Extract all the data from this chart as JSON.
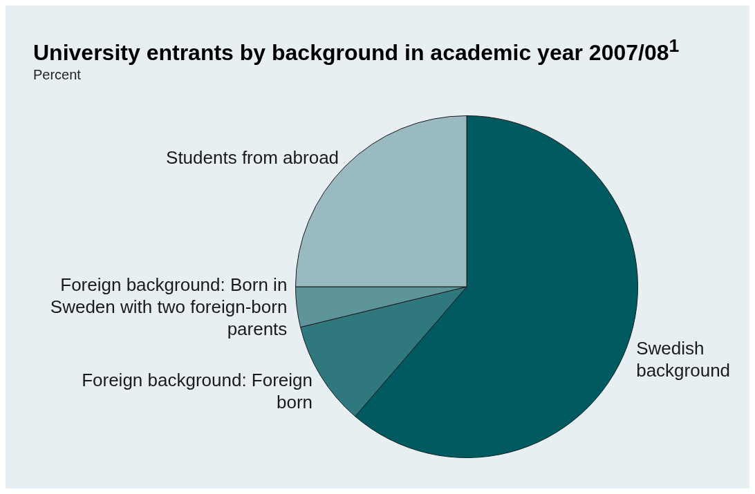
{
  "chart_data": {
    "type": "pie",
    "title": "University entrants by background in academic year 2007/08$^{1}$",
    "subtitle": "Percent",
    "categories": [
      "Swedish background",
      "Foreign background: Foreign born",
      "Foreign background: Born in Sweden with two foreign-born parents",
      "Students from abroad"
    ],
    "values": [
      61.3,
      9.9,
      3.8,
      25
    ],
    "colors": [
      "#005a60",
      "#2e787e",
      "#5e959b",
      "#98bac0"
    ],
    "legend": false
  }
}
